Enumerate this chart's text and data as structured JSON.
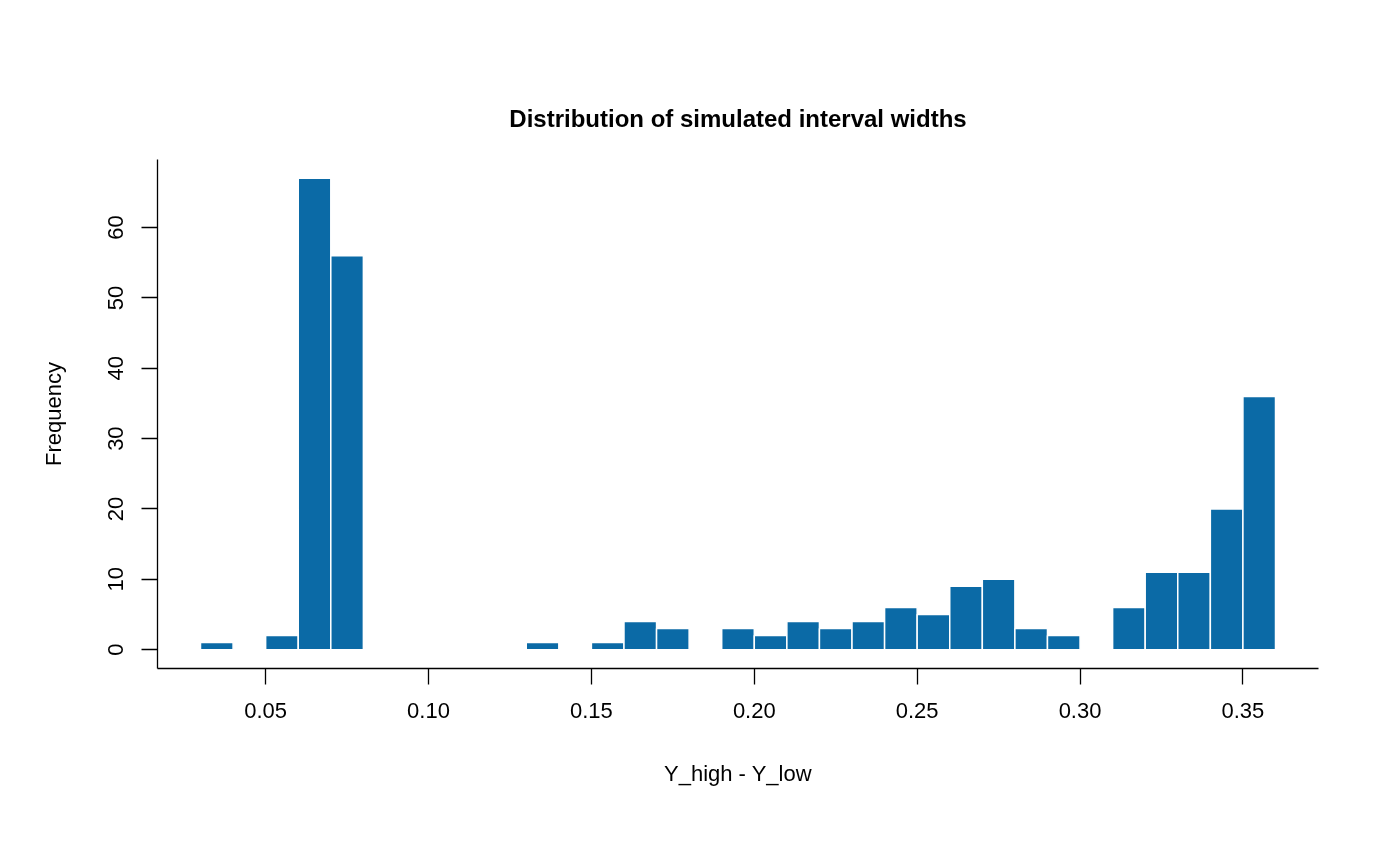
{
  "chart_data": {
    "type": "histogram",
    "title": "Distribution of simulated interval widths",
    "xlabel": "Y_high - Y_low",
    "ylabel": "Frequency",
    "bins": [
      0.03,
      0.04,
      0.05,
      0.06,
      0.07,
      0.08,
      0.09,
      0.1,
      0.11,
      0.12,
      0.13,
      0.14,
      0.15,
      0.16,
      0.17,
      0.18,
      0.19,
      0.2,
      0.21,
      0.22,
      0.23,
      0.24,
      0.25,
      0.26,
      0.27,
      0.28,
      0.29,
      0.3,
      0.31,
      0.32,
      0.33,
      0.34,
      0.35,
      0.36
    ],
    "values": [
      1,
      0,
      2,
      67,
      56,
      0,
      0,
      0,
      0,
      0,
      1,
      0,
      1,
      4,
      3,
      0,
      3,
      2,
      4,
      3,
      4,
      6,
      5,
      9,
      10,
      3,
      2,
      0,
      6,
      11,
      11,
      20,
      36
    ],
    "color": "#0b6aa6",
    "xlim": [
      0.0168,
      0.3732
    ],
    "ylim": [
      -2.68,
      69.68
    ],
    "xticks": [
      {
        "value": 0.05,
        "label": "0.05"
      },
      {
        "value": 0.1,
        "label": "0.10"
      },
      {
        "value": 0.15,
        "label": "0.15"
      },
      {
        "value": 0.2,
        "label": "0.20"
      },
      {
        "value": 0.25,
        "label": "0.25"
      },
      {
        "value": 0.3,
        "label": "0.30"
      },
      {
        "value": 0.35,
        "label": "0.35"
      }
    ],
    "yticks": [
      0,
      10,
      20,
      30,
      40,
      50,
      60
    ],
    "grid": false
  }
}
